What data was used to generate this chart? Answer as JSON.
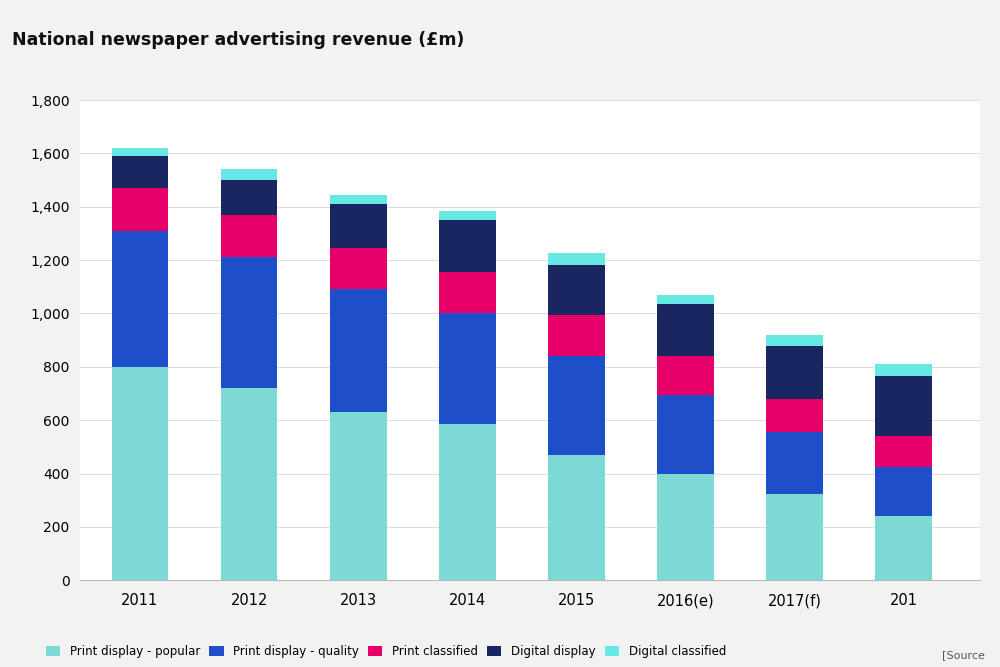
{
  "title": "National newspaper advertising revenue (£m)",
  "years": [
    "2011",
    "2012",
    "2013",
    "2014",
    "2015",
    "2016(e)",
    "2017(f)",
    "201"
  ],
  "series": {
    "Print display - popular": [
      800,
      720,
      630,
      585,
      470,
      400,
      325,
      240
    ],
    "Print display - quality": [
      510,
      490,
      460,
      415,
      370,
      295,
      230,
      185
    ],
    "Print classified": [
      160,
      160,
      155,
      155,
      155,
      145,
      125,
      115
    ],
    "Digital display": [
      120,
      130,
      165,
      195,
      185,
      195,
      200,
      225
    ],
    "Digital classified": [
      30,
      40,
      35,
      35,
      45,
      35,
      40,
      45
    ]
  },
  "colors": {
    "Print display - popular": "#7DD9D3",
    "Print display - quality": "#1E4EC8",
    "Print classified": "#E8006A",
    "Digital display": "#1A2660",
    "Digital classified": "#66E8E4"
  },
  "legend_labels": [
    "Print display - popular",
    "Print display - quality",
    "Print classified",
    "Digital display",
    "Digital classified"
  ],
  "ylim": [
    0,
    1800
  ],
  "yticks": [
    0,
    200,
    400,
    600,
    800,
    1000,
    1200,
    1400,
    1600,
    1800
  ],
  "source_text": "[Source",
  "background_color": "#f2f2f2",
  "plot_background": "#ffffff",
  "title_bg_color": "#e6e6e6"
}
